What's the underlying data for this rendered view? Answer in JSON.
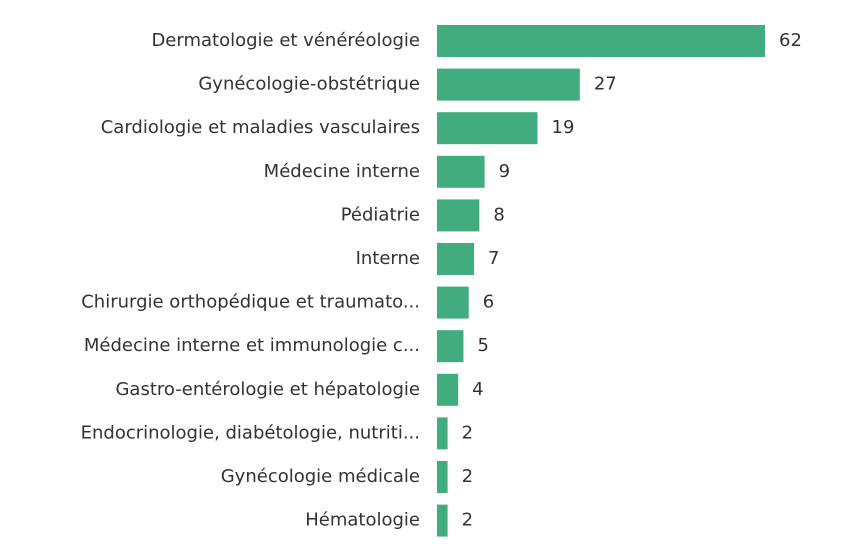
{
  "chart_data": {
    "type": "bar",
    "orientation": "horizontal",
    "categories": [
      "Dermatologie et vénéréologie",
      "Gynécologie-obstétrique",
      "Cardiologie et maladies vasculaires",
      "Médecine interne",
      "Pédiatrie",
      "Interne",
      "Chirurgie orthopédique et traumato...",
      "Médecine interne et immunologie c...",
      "Gastro-entérologie et hépatologie",
      "Endocrinologie, diabétologie, nutriti...",
      "Gynécologie médicale",
      "Hématologie"
    ],
    "values": [
      62,
      27,
      19,
      9,
      8,
      7,
      6,
      5,
      4,
      2,
      2,
      2
    ],
    "color": "#41ad7e"
  }
}
